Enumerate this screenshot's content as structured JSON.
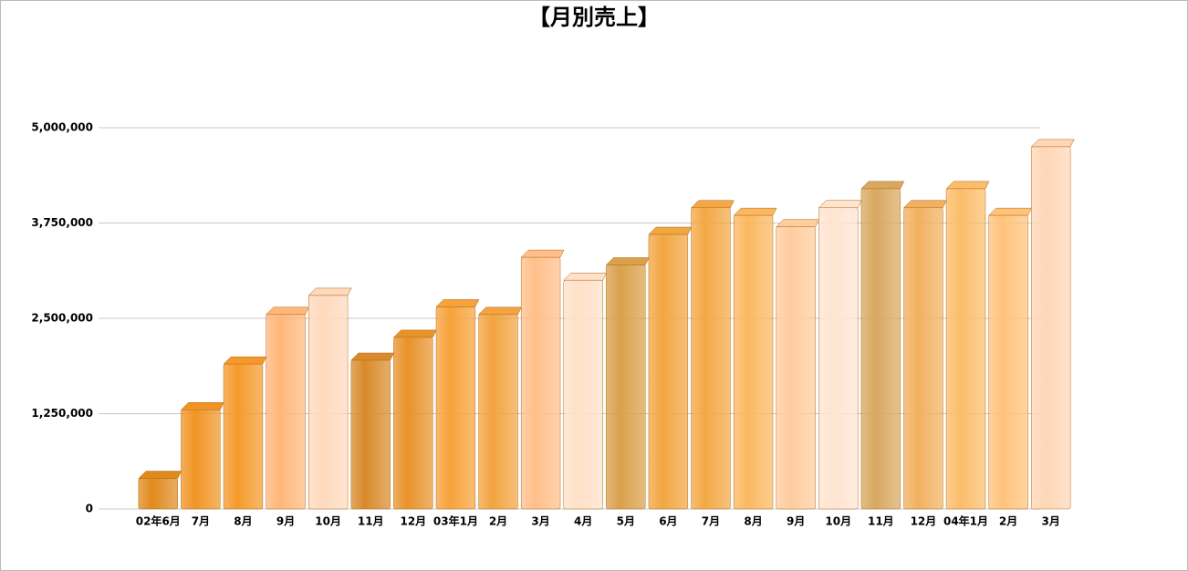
{
  "chart_data": {
    "type": "bar",
    "title": "【月別売上】",
    "categories": [
      "02年6月",
      "7月",
      "8月",
      "9月",
      "10月",
      "11月",
      "12月",
      "03年1月",
      "2月",
      "3月",
      "4月",
      "5月",
      "6月",
      "7月",
      "8月",
      "9月",
      "10月",
      "11月",
      "12月",
      "04年1月",
      "2月",
      "3月"
    ],
    "values": [
      400000,
      1300000,
      1900000,
      2550000,
      2800000,
      1950000,
      2250000,
      2650000,
      2550000,
      3300000,
      3000000,
      3200000,
      3600000,
      3950000,
      3850000,
      3700000,
      3950000,
      4200000,
      3950000,
      4200000,
      3850000,
      4750000
    ],
    "colors": [
      "#e08a1e",
      "#f09424",
      "#f59a2a",
      "#ffb77a",
      "#ffd9bd",
      "#d98a2a",
      "#e8922a",
      "#f8a23a",
      "#f3a340",
      "#ffbf8a",
      "#ffe0c8",
      "#daa04a",
      "#f2a640",
      "#f3a845",
      "#fbb860",
      "#ffcc9e",
      "#ffe4d0",
      "#d8a860",
      "#f2b060",
      "#fbbd6a",
      "#ffc37a",
      "#ffd6b6"
    ],
    "ylim": [
      0,
      5000000
    ],
    "yticks": [
      0,
      {
        "value": 1250000,
        "label": "1,250,000"
      },
      {
        "value": 2500000,
        "label": "2,500,000"
      },
      {
        "value": 3750000,
        "label": "3,750,000"
      },
      {
        "value": 5000000,
        "label": "5,000,000"
      }
    ],
    "grid": true
  }
}
